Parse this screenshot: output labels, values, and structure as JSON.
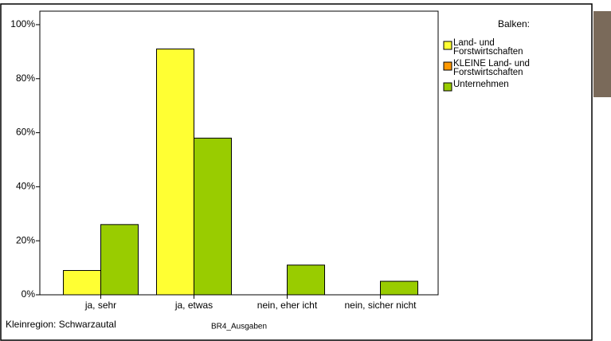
{
  "chart_data": {
    "type": "bar",
    "categories": [
      "ja, sehr",
      "ja, etwas",
      "nein, eher icht",
      "nein, sicher nicht"
    ],
    "series": [
      {
        "name": "Land- und\nForstwirtschaften",
        "color": "#ffff33",
        "values": [
          9,
          91,
          null,
          null
        ]
      },
      {
        "name": "KLEINE Land- und\nForstwirtschaften",
        "color": "#ff9900",
        "values": [
          null,
          null,
          null,
          null
        ]
      },
      {
        "name": "Unternehmen",
        "color": "#99cc00",
        "values": [
          26,
          58,
          11,
          5
        ]
      }
    ],
    "ylim": [
      0,
      105
    ],
    "yticks": [
      {
        "value": 0,
        "label": "0%"
      },
      {
        "value": 20,
        "label": "20%"
      },
      {
        "value": 40,
        "label": "40%"
      },
      {
        "value": 60,
        "label": "60%"
      },
      {
        "value": 80,
        "label": "80%"
      },
      {
        "value": 100,
        "label": "100%"
      }
    ],
    "legend_title": "Balken:",
    "xlabel": "BR4_Ausgaben",
    "footnote": "Kleinregion: Schwarzautal"
  }
}
